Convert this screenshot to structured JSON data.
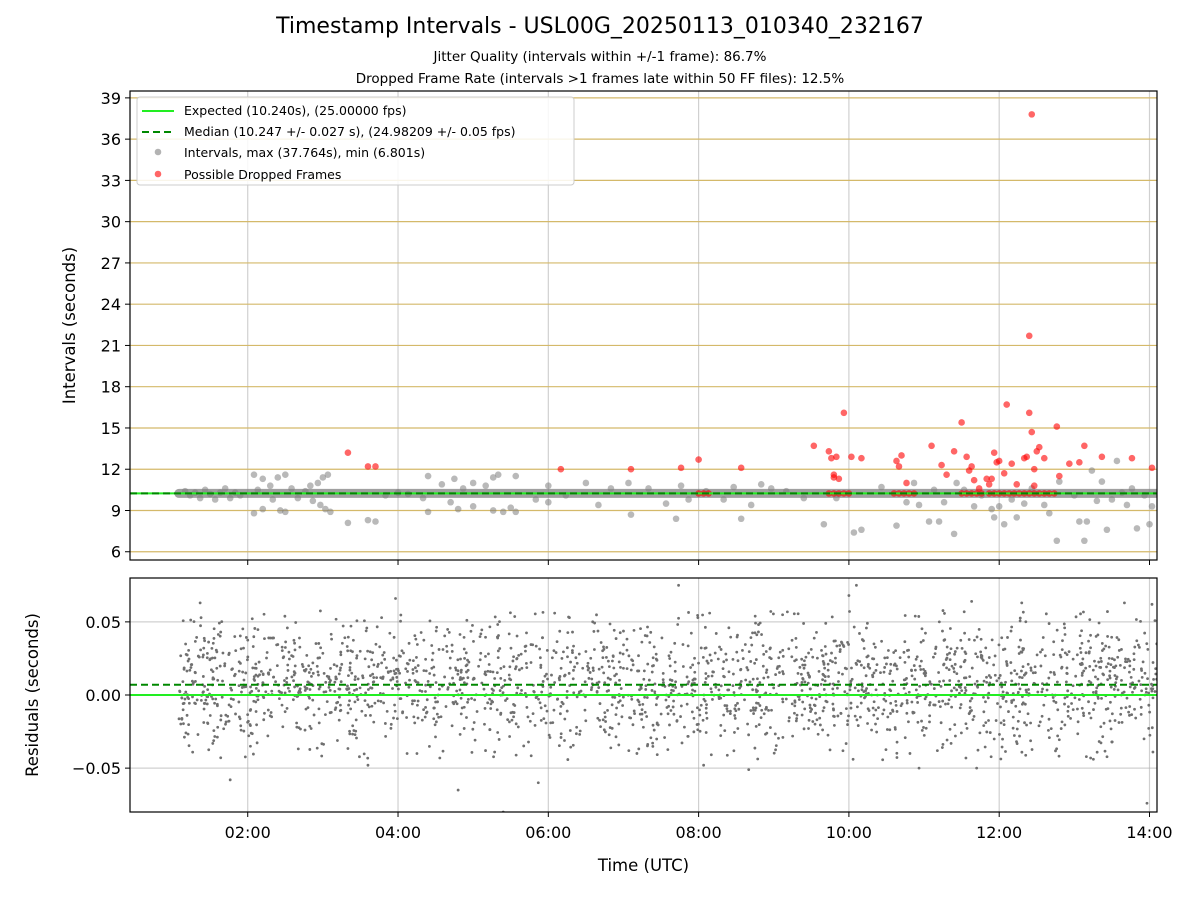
{
  "chart_data": [
    {
      "type": "scatter",
      "title": "Timestamp Intervals - USL00G_20250113_010340_232167",
      "subtitle_lines": [
        "Jitter Quality (intervals within +/-1 frame): 86.7%",
        "Dropped Frame Rate (intervals >1 frames late within 50 FF files): 12.5%"
      ],
      "xlabel": "",
      "ylabel": "Intervals (seconds)",
      "xlim": [
        "00:26",
        "14:06"
      ],
      "ylim": [
        5.4,
        39.5
      ],
      "xticks": [
        "02:00",
        "04:00",
        "06:00",
        "08:00",
        "10:00",
        "12:00",
        "14:00"
      ],
      "yticks": [
        6,
        9,
        12,
        15,
        18,
        21,
        24,
        27,
        30,
        33,
        36,
        39
      ],
      "grid": true,
      "legend_position": "top-left",
      "legend": [
        "Expected (10.240s), (25.00000 fps)",
        "Median (10.247 +/- 0.027 s), (24.98209 +/- 0.05 fps)",
        "Intervals, max (37.764s), min (6.801s)",
        "Possible Dropped Frames"
      ],
      "colors": {
        "expected": "#22ee22",
        "median": "#008800",
        "intervals": "#808080",
        "dropped": "#ff0000",
        "ygrid": "#d4b96a"
      },
      "series": [
        {
          "name": "Expected (10.240s), (25.00000 fps)",
          "kind": "hline",
          "y": 10.24
        },
        {
          "name": "Median (10.247 +/- 0.027 s), (24.98209 +/- 0.05 fps)",
          "kind": "hline",
          "y": 10.247
        },
        {
          "name": "Intervals, max (37.764s), min (6.801s)",
          "kind": "scatter",
          "baseline": {
            "x_start": "01:05",
            "x_end": "14:06",
            "y": 10.24
          },
          "points": [
            [
              "01:10",
              10.4
            ],
            [
              "01:14",
              10.1
            ],
            [
              "01:18",
              10.3
            ],
            [
              "01:22",
              9.9
            ],
            [
              "01:26",
              10.5
            ],
            [
              "01:30",
              10.2
            ],
            [
              "01:34",
              9.8
            ],
            [
              "01:38",
              10.3
            ],
            [
              "01:42",
              10.6
            ],
            [
              "01:46",
              9.9
            ],
            [
              "01:50",
              10.3
            ],
            [
              "01:54",
              10.1
            ],
            [
              "02:05",
              11.6
            ],
            [
              "02:05",
              8.8
            ],
            [
              "02:08",
              10.5
            ],
            [
              "02:12",
              11.3
            ],
            [
              "02:12",
              9.1
            ],
            [
              "02:18",
              10.8
            ],
            [
              "02:20",
              9.8
            ],
            [
              "02:24",
              11.4
            ],
            [
              "02:26",
              9.0
            ],
            [
              "02:30",
              11.6
            ],
            [
              "02:30",
              8.9
            ],
            [
              "02:35",
              10.6
            ],
            [
              "02:40",
              9.9
            ],
            [
              "02:46",
              10.4
            ],
            [
              "02:50",
              10.8
            ],
            [
              "02:52",
              9.7
            ],
            [
              "02:56",
              11.0
            ],
            [
              "02:58",
              9.4
            ],
            [
              "03:00",
              11.4
            ],
            [
              "03:02",
              9.1
            ],
            [
              "03:04",
              11.6
            ],
            [
              "03:06",
              8.9
            ],
            [
              "03:20",
              8.1
            ],
            [
              "03:36",
              8.3
            ],
            [
              "03:42",
              8.2
            ],
            [
              "03:50",
              10.1
            ],
            [
              "04:00",
              10.3
            ],
            [
              "04:08",
              10.2
            ],
            [
              "04:20",
              9.9
            ],
            [
              "04:24",
              11.5
            ],
            [
              "04:24",
              8.9
            ],
            [
              "04:35",
              10.9
            ],
            [
              "04:42",
              9.6
            ],
            [
              "04:45",
              11.3
            ],
            [
              "04:48",
              9.1
            ],
            [
              "04:52",
              10.6
            ],
            [
              "05:00",
              11.0
            ],
            [
              "05:00",
              9.3
            ],
            [
              "05:10",
              10.8
            ],
            [
              "05:16",
              11.4
            ],
            [
              "05:16",
              9.0
            ],
            [
              "05:20",
              11.6
            ],
            [
              "05:24",
              8.9
            ],
            [
              "05:30",
              9.2
            ],
            [
              "05:34",
              11.5
            ],
            [
              "05:34",
              8.9
            ],
            [
              "05:50",
              9.8
            ],
            [
              "06:00",
              10.8
            ],
            [
              "06:00",
              9.6
            ],
            [
              "06:14",
              10.1
            ],
            [
              "06:30",
              11.0
            ],
            [
              "06:40",
              9.4
            ],
            [
              "06:50",
              10.6
            ],
            [
              "07:04",
              11.0
            ],
            [
              "07:06",
              8.7
            ],
            [
              "07:20",
              10.6
            ],
            [
              "07:34",
              9.5
            ],
            [
              "07:42",
              8.4
            ],
            [
              "07:46",
              10.8
            ],
            [
              "07:52",
              9.8
            ],
            [
              "08:06",
              10.4
            ],
            [
              "08:20",
              9.8
            ],
            [
              "08:28",
              10.7
            ],
            [
              "08:34",
              8.4
            ],
            [
              "08:42",
              9.4
            ],
            [
              "08:50",
              10.9
            ],
            [
              "08:58",
              10.6
            ],
            [
              "09:10",
              10.4
            ],
            [
              "09:24",
              9.9
            ],
            [
              "09:40",
              8.0
            ],
            [
              "09:50",
              9.9
            ],
            [
              "10:04",
              7.4
            ],
            [
              "10:10",
              7.6
            ],
            [
              "10:26",
              10.7
            ],
            [
              "10:38",
              7.9
            ],
            [
              "10:46",
              9.6
            ],
            [
              "10:52",
              11.0
            ],
            [
              "10:56",
              9.4
            ],
            [
              "11:04",
              8.2
            ],
            [
              "11:08",
              10.5
            ],
            [
              "11:12",
              8.2
            ],
            [
              "11:16",
              9.6
            ],
            [
              "11:24",
              7.3
            ],
            [
              "11:26",
              11.0
            ],
            [
              "11:32",
              10.5
            ],
            [
              "11:40",
              9.3
            ],
            [
              "11:46",
              10.1
            ],
            [
              "11:54",
              9.1
            ],
            [
              "11:56",
              8.5
            ],
            [
              "12:00",
              9.3
            ],
            [
              "12:04",
              8.0
            ],
            [
              "12:10",
              9.8
            ],
            [
              "12:14",
              8.5
            ],
            [
              "12:20",
              9.5
            ],
            [
              "12:26",
              10.6
            ],
            [
              "12:36",
              9.4
            ],
            [
              "12:40",
              8.8
            ],
            [
              "12:46",
              6.8
            ],
            [
              "12:48",
              11.1
            ],
            [
              "13:00",
              10.1
            ],
            [
              "13:04",
              8.2
            ],
            [
              "13:08",
              6.8
            ],
            [
              "13:10",
              8.2
            ],
            [
              "13:14",
              11.9
            ],
            [
              "13:18",
              9.7
            ],
            [
              "13:22",
              11.1
            ],
            [
              "13:26",
              7.6
            ],
            [
              "13:30",
              9.8
            ],
            [
              "13:34",
              12.6
            ],
            [
              "13:38",
              10.3
            ],
            [
              "13:42",
              9.4
            ],
            [
              "13:46",
              10.6
            ],
            [
              "13:50",
              7.7
            ],
            [
              "13:56",
              10.1
            ],
            [
              "14:00",
              8.0
            ],
            [
              "14:02",
              9.3
            ]
          ]
        },
        {
          "name": "Possible Dropped Frames",
          "kind": "scatter",
          "points": [
            [
              "03:20",
              13.2
            ],
            [
              "03:36",
              12.2
            ],
            [
              "03:42",
              12.2
            ],
            [
              "06:10",
              12.0
            ],
            [
              "07:06",
              12.0
            ],
            [
              "07:46",
              12.1
            ],
            [
              "08:00",
              12.7
            ],
            [
              "08:34",
              12.1
            ],
            [
              "09:32",
              13.7
            ],
            [
              "09:44",
              13.3
            ],
            [
              "09:46",
              12.8
            ],
            [
              "09:48",
              11.4
            ],
            [
              "09:48",
              11.6
            ],
            [
              "09:50",
              12.9
            ],
            [
              "09:52",
              11.3
            ],
            [
              "09:56",
              16.1
            ],
            [
              "10:02",
              12.9
            ],
            [
              "10:10",
              12.8
            ],
            [
              "10:38",
              12.6
            ],
            [
              "10:40",
              12.2
            ],
            [
              "10:42",
              13.0
            ],
            [
              "10:46",
              11.0
            ],
            [
              "11:06",
              13.7
            ],
            [
              "11:14",
              12.3
            ],
            [
              "11:18",
              11.6
            ],
            [
              "11:24",
              13.3
            ],
            [
              "11:30",
              15.4
            ],
            [
              "11:34",
              12.9
            ],
            [
              "11:36",
              11.9
            ],
            [
              "11:38",
              12.2
            ],
            [
              "11:40",
              11.2
            ],
            [
              "11:44",
              10.6
            ],
            [
              "11:50",
              11.3
            ],
            [
              "11:52",
              10.9
            ],
            [
              "11:54",
              11.3
            ],
            [
              "11:56",
              13.2
            ],
            [
              "11:58",
              12.5
            ],
            [
              "12:00",
              12.6
            ],
            [
              "12:04",
              11.7
            ],
            [
              "12:06",
              16.7
            ],
            [
              "12:10",
              12.4
            ],
            [
              "12:14",
              10.9
            ],
            [
              "12:20",
              12.8
            ],
            [
              "12:22",
              12.9
            ],
            [
              "12:24",
              21.7
            ],
            [
              "12:24",
              16.1
            ],
            [
              "12:26",
              14.7
            ],
            [
              "12:28",
              12.0
            ],
            [
              "12:28",
              10.8
            ],
            [
              "12:30",
              13.3
            ],
            [
              "12:32",
              13.6
            ],
            [
              "12:36",
              12.8
            ],
            [
              "12:26",
              37.8
            ],
            [
              "12:46",
              15.1
            ],
            [
              "12:48",
              11.5
            ],
            [
              "12:56",
              12.4
            ],
            [
              "13:08",
              13.7
            ],
            [
              "13:04",
              12.5
            ],
            [
              "13:22",
              12.9
            ],
            [
              "13:46",
              12.8
            ],
            [
              "14:02",
              12.1
            ],
            [
              "08:00",
              10.24
            ],
            [
              "08:04",
              10.24
            ],
            [
              "08:08",
              10.24
            ],
            [
              "09:44",
              10.24
            ],
            [
              "09:48",
              10.24
            ],
            [
              "09:52",
              10.24
            ],
            [
              "09:56",
              10.24
            ],
            [
              "10:00",
              10.24
            ],
            [
              "10:36",
              10.24
            ],
            [
              "10:40",
              10.24
            ],
            [
              "10:44",
              10.24
            ],
            [
              "10:48",
              10.24
            ],
            [
              "10:52",
              10.24
            ],
            [
              "11:30",
              10.24
            ],
            [
              "11:34",
              10.24
            ],
            [
              "11:38",
              10.24
            ],
            [
              "11:42",
              10.24
            ],
            [
              "11:46",
              10.24
            ],
            [
              "11:52",
              10.24
            ],
            [
              "11:56",
              10.24
            ],
            [
              "12:00",
              10.24
            ],
            [
              "12:04",
              10.24
            ],
            [
              "12:08",
              10.24
            ],
            [
              "12:12",
              10.24
            ],
            [
              "12:16",
              10.24
            ],
            [
              "12:20",
              10.24
            ],
            [
              "12:24",
              10.24
            ],
            [
              "12:28",
              10.24
            ],
            [
              "12:32",
              10.24
            ],
            [
              "12:36",
              10.24
            ],
            [
              "12:40",
              10.24
            ],
            [
              "12:44",
              10.24
            ]
          ]
        }
      ]
    },
    {
      "type": "scatter",
      "xlabel": "Time (UTC)",
      "ylabel": "Residuals (seconds)",
      "xlim": [
        "00:26",
        "14:06"
      ],
      "ylim": [
        -0.08,
        0.08
      ],
      "xticks": [
        "02:00",
        "04:00",
        "06:00",
        "08:00",
        "10:00",
        "12:00",
        "14:00"
      ],
      "yticks": [
        0.05,
        0.0,
        -0.05
      ],
      "ytick_labels": [
        "0.05",
        "0.00",
        "−0.05"
      ],
      "grid": true,
      "series": [
        {
          "kind": "hline",
          "y": 0.0
        },
        {
          "kind": "hline",
          "y": 0.007
        },
        {
          "kind": "scatter",
          "x_range": [
            "01:05",
            "14:06"
          ],
          "approx_count": 2300,
          "mean": 0.007,
          "std_dev": 0.022,
          "outliers": [
            [
              "01:22",
              0.063
            ],
            [
              "03:58",
              0.066
            ],
            [
              "07:44",
              0.075
            ],
            [
              "10:06",
              0.075
            ],
            [
              "10:00",
              0.068
            ],
            [
              "11:38",
              0.064
            ],
            [
              "12:18",
              0.063
            ],
            [
              "13:40",
              0.063
            ],
            [
              "14:02",
              0.062
            ],
            [
              "01:46",
              -0.058
            ],
            [
              "03:36",
              -0.048
            ],
            [
              "04:48",
              -0.065
            ],
            [
              "05:24",
              -0.08
            ],
            [
              "05:52",
              -0.06
            ],
            [
              "08:04",
              -0.048
            ],
            [
              "08:40",
              -0.051
            ],
            [
              "10:56",
              -0.05
            ],
            [
              "11:42",
              -0.05
            ],
            [
              "13:58",
              -0.074
            ]
          ]
        }
      ]
    }
  ]
}
